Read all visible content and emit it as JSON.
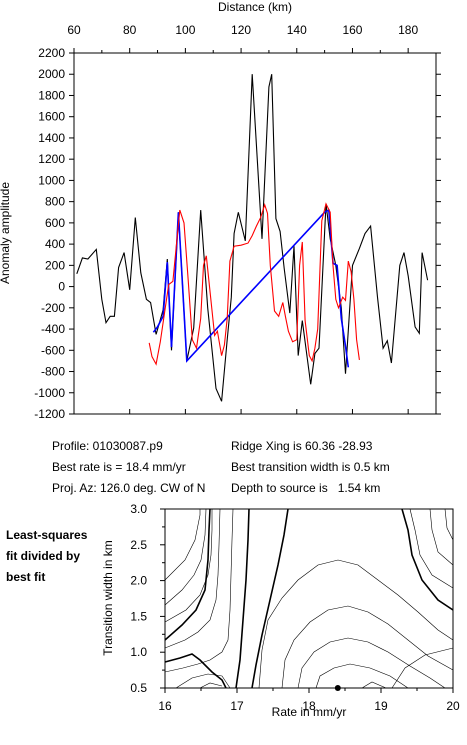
{
  "chart_data": [
    {
      "type": "line",
      "xlabel": "Distance (km)",
      "ylabel": "Anomaly amplitude",
      "xlim": [
        60,
        190
      ],
      "ylim": [
        -1200,
        2200
      ],
      "x_ticks": [
        60,
        80,
        100,
        120,
        140,
        160,
        180
      ],
      "y_ticks": [
        -1200,
        -1000,
        -800,
        -600,
        -400,
        -200,
        0,
        200,
        400,
        600,
        800,
        1000,
        1200,
        1400,
        1600,
        1800,
        2000,
        2200
      ],
      "series": [
        {
          "color": "#000000",
          "points": [
            [
              61,
              120
            ],
            [
              63,
              270
            ],
            [
              65,
              260
            ],
            [
              68,
              350
            ],
            [
              70,
              -120
            ],
            [
              71.5,
              -340
            ],
            [
              73,
              -280
            ],
            [
              74.5,
              -280
            ],
            [
              76,
              180
            ],
            [
              78,
              320
            ],
            [
              80,
              -30
            ],
            [
              82,
              650
            ],
            [
              84,
              130
            ],
            [
              86,
              -120
            ],
            [
              87.5,
              -150
            ],
            [
              89.5,
              -450
            ],
            [
              92,
              -220
            ],
            [
              93.5,
              260
            ],
            [
              95,
              -600
            ],
            [
              97.5,
              700
            ],
            [
              100.5,
              -700
            ],
            [
              103,
              -390
            ],
            [
              105.5,
              720
            ],
            [
              108,
              -200
            ],
            [
              111,
              -960
            ],
            [
              113,
              -1080
            ],
            [
              115,
              -500
            ],
            [
              116.5,
              -100
            ],
            [
              117.5,
              500
            ],
            [
              119,
              700
            ],
            [
              121.5,
              430
            ],
            [
              124,
              2000
            ],
            [
              127.5,
              450
            ],
            [
              130,
              1880
            ],
            [
              131,
              2000
            ],
            [
              132.5,
              640
            ],
            [
              134,
              520
            ],
            [
              135.5,
              170
            ],
            [
              137.5,
              -250
            ],
            [
              139,
              380
            ],
            [
              140.5,
              -650
            ],
            [
              142,
              -320
            ],
            [
              145,
              -920
            ],
            [
              146.5,
              -630
            ],
            [
              148,
              -580
            ],
            [
              150.5,
              780
            ],
            [
              152,
              450
            ],
            [
              154,
              200
            ],
            [
              156,
              -200
            ],
            [
              157.5,
              -820
            ],
            [
              160,
              200
            ],
            [
              162.5,
              360
            ],
            [
              164.5,
              500
            ],
            [
              166.5,
              570
            ],
            [
              169,
              -100
            ],
            [
              171,
              -580
            ],
            [
              172.5,
              -510
            ],
            [
              174,
              -720
            ],
            [
              177,
              200
            ],
            [
              178.5,
              320
            ],
            [
              180,
              100
            ],
            [
              182.5,
              -380
            ],
            [
              184,
              -440
            ],
            [
              185,
              320
            ],
            [
              187,
              60
            ]
          ]
        },
        {
          "color": "#0000ff",
          "points": [
            [
              88.5,
              -430
            ],
            [
              90,
              -380
            ],
            [
              92,
              -280
            ],
            [
              93.5,
              230
            ],
            [
              95,
              -570
            ],
            [
              97.5,
              700
            ],
            [
              100.5,
              -700
            ],
            [
              150,
              700
            ],
            [
              151.5,
              720
            ],
            [
              153,
              220
            ],
            [
              154.5,
              200
            ],
            [
              156,
              -300
            ],
            [
              157.5,
              -560
            ],
            [
              158.5,
              -760
            ]
          ]
        },
        {
          "color": "#ff0000",
          "points": [
            [
              87,
              -530
            ],
            [
              88,
              -660
            ],
            [
              89.5,
              -730
            ],
            [
              91,
              -520
            ],
            [
              92.5,
              -250
            ],
            [
              94,
              20
            ],
            [
              95.5,
              50
            ],
            [
              97,
              450
            ],
            [
              98,
              720
            ],
            [
              99.5,
              600
            ],
            [
              101,
              60
            ],
            [
              102.5,
              -500
            ],
            [
              104,
              -580
            ],
            [
              105.5,
              -300
            ],
            [
              106.5,
              200
            ],
            [
              107.5,
              290
            ],
            [
              109,
              -80
            ],
            [
              110.5,
              -460
            ],
            [
              111.5,
              -420
            ],
            [
              113,
              -650
            ],
            [
              114,
              -550
            ],
            [
              115,
              -300
            ],
            [
              116,
              240
            ],
            [
              117.5,
              380
            ],
            [
              120,
              390
            ],
            [
              122.5,
              410
            ],
            [
              124,
              480
            ],
            [
              125.5,
              570
            ],
            [
              127,
              650
            ],
            [
              128.5,
              770
            ],
            [
              129.5,
              690
            ],
            [
              130.5,
              200
            ],
            [
              132,
              -230
            ],
            [
              133.5,
              -280
            ],
            [
              135,
              -150
            ],
            [
              136,
              -290
            ],
            [
              137,
              -420
            ],
            [
              138.5,
              -520
            ],
            [
              140,
              -500
            ],
            [
              141,
              200
            ],
            [
              142,
              420
            ],
            [
              143,
              -320
            ],
            [
              144.5,
              -650
            ],
            [
              145.5,
              -700
            ],
            [
              146.5,
              -580
            ],
            [
              147.5,
              -400
            ],
            [
              149,
              620
            ],
            [
              150.5,
              780
            ],
            [
              152,
              700
            ],
            [
              153,
              200
            ],
            [
              154,
              -120
            ],
            [
              155,
              -200
            ],
            [
              156.5,
              -100
            ],
            [
              157.5,
              -130
            ],
            [
              158.5,
              240
            ],
            [
              159.5,
              140
            ],
            [
              160.5,
              -120
            ],
            [
              161.5,
              -500
            ],
            [
              162.5,
              -690
            ]
          ]
        }
      ]
    },
    {
      "type": "contour",
      "xlabel": "Rate in mm/yr",
      "ylabel": "Transition width in km",
      "xlim": [
        16,
        20
      ],
      "ylim": [
        0.5,
        3.0
      ],
      "x_ticks": [
        16,
        17,
        18,
        19,
        20
      ],
      "y_ticks": [
        0.5,
        1.0,
        1.5,
        2.0,
        2.5,
        3.0
      ],
      "best_fit_point": [
        18.4,
        0.5
      ]
    }
  ],
  "info": {
    "profile": "Profile: 01030087.p9",
    "rate": "Best rate is = 18.4 mm/yr",
    "azimuth": "Proj. Az: 126.0 deg. CW of N",
    "ridge": "Ridge Xing is 60.36 -28.93",
    "width": "Best transition width is 0.5 km",
    "depth": "Depth to source is   1.54 km"
  },
  "note": {
    "line1": "Least-squares",
    "line2": "fit divided by",
    "line3": "best fit"
  }
}
